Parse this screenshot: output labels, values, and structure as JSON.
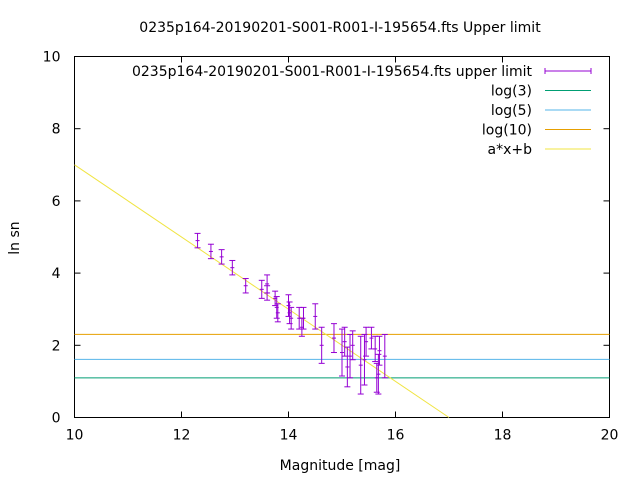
{
  "chart_data": {
    "type": "scatter",
    "title": "0235p164-20190201-S001-R001-I-195654.fts Upper limit",
    "xlabel": "Magnitude [mag]",
    "ylabel": "ln sn",
    "xlim": [
      10,
      20
    ],
    "ylim": [
      0,
      10
    ],
    "x_ticks": [
      "10",
      "12",
      "14",
      "16",
      "18",
      "20"
    ],
    "y_ticks": [
      "0",
      "2",
      "4",
      "6",
      "8",
      "10"
    ],
    "grid": false,
    "legend_position": "top-right",
    "legend": [
      {
        "label": "0235p164-20190201-S001-R001-I-195654.fts upper limit",
        "kind": "errorbar",
        "color": "#9400d3"
      },
      {
        "label": "log(3)",
        "kind": "line",
        "color": "#009e73"
      },
      {
        "label": "log(5)",
        "kind": "line",
        "color": "#56b4e9"
      },
      {
        "label": "log(10)",
        "kind": "line",
        "color": "#e69f00"
      },
      {
        "label": "a*x+b",
        "kind": "line",
        "color": "#f0e442"
      }
    ],
    "series": [
      {
        "name": "0235p164-20190201-S001-R001-I-195654.fts upper limit",
        "color": "#9400d3",
        "points": [
          {
            "x": 12.3,
            "y": 4.9,
            "err": 0.2
          },
          {
            "x": 12.55,
            "y": 4.6,
            "err": 0.2
          },
          {
            "x": 12.75,
            "y": 4.45,
            "err": 0.2
          },
          {
            "x": 12.95,
            "y": 4.15,
            "err": 0.2
          },
          {
            "x": 13.2,
            "y": 3.65,
            "err": 0.2
          },
          {
            "x": 13.5,
            "y": 3.55,
            "err": 0.25
          },
          {
            "x": 13.6,
            "y": 3.7,
            "err": 0.25
          },
          {
            "x": 13.6,
            "y": 3.45,
            "err": 0.2
          },
          {
            "x": 13.75,
            "y": 3.3,
            "err": 0.2
          },
          {
            "x": 13.78,
            "y": 3.05,
            "err": 0.3
          },
          {
            "x": 13.8,
            "y": 2.9,
            "err": 0.25
          },
          {
            "x": 14.0,
            "y": 3.1,
            "err": 0.3
          },
          {
            "x": 14.02,
            "y": 2.9,
            "err": 0.3
          },
          {
            "x": 14.05,
            "y": 2.75,
            "err": 0.3
          },
          {
            "x": 14.2,
            "y": 2.75,
            "err": 0.3
          },
          {
            "x": 14.25,
            "y": 2.5,
            "err": 0.25
          },
          {
            "x": 14.28,
            "y": 2.75,
            "err": 0.3
          },
          {
            "x": 14.5,
            "y": 2.8,
            "err": 0.35
          },
          {
            "x": 14.62,
            "y": 2.0,
            "err": 0.5
          },
          {
            "x": 14.85,
            "y": 2.2,
            "err": 0.4
          },
          {
            "x": 15.0,
            "y": 1.8,
            "err": 0.65
          },
          {
            "x": 15.05,
            "y": 2.1,
            "err": 0.4
          },
          {
            "x": 15.1,
            "y": 1.4,
            "err": 0.55
          },
          {
            "x": 15.15,
            "y": 1.7,
            "err": 0.6
          },
          {
            "x": 15.2,
            "y": 2.0,
            "err": 0.4
          },
          {
            "x": 15.35,
            "y": 1.45,
            "err": 0.8
          },
          {
            "x": 15.42,
            "y": 1.6,
            "err": 0.7
          },
          {
            "x": 15.45,
            "y": 2.1,
            "err": 0.4
          },
          {
            "x": 15.55,
            "y": 2.2,
            "err": 0.3
          },
          {
            "x": 15.62,
            "y": 1.9,
            "err": 0.35
          },
          {
            "x": 15.65,
            "y": 1.1,
            "err": 0.4
          },
          {
            "x": 15.68,
            "y": 1.2,
            "err": 0.55
          },
          {
            "x": 15.7,
            "y": 1.85,
            "err": 0.4
          },
          {
            "x": 15.8,
            "y": 1.7,
            "err": 0.6
          }
        ]
      },
      {
        "name": "log(3)",
        "color": "#009e73",
        "y_const": 1.0986
      },
      {
        "name": "log(5)",
        "color": "#56b4e9",
        "y_const": 1.6094
      },
      {
        "name": "log(10)",
        "color": "#e69f00",
        "y_const": 2.3026
      },
      {
        "name": "a*x+b",
        "color": "#f0e442",
        "line": [
          [
            10,
            7.0
          ],
          [
            17.0,
            0
          ]
        ]
      }
    ]
  }
}
